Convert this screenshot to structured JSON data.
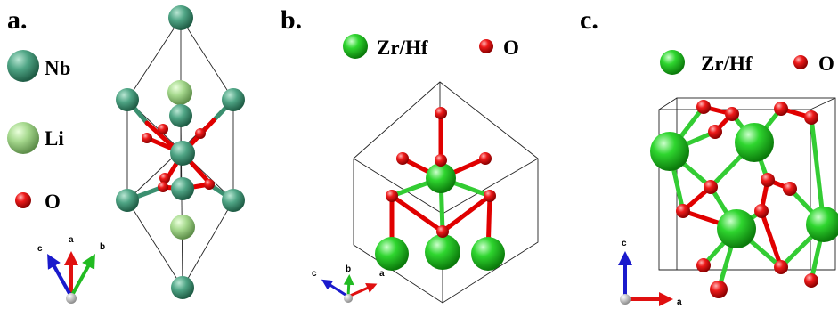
{
  "panels": [
    {
      "letter": "a.",
      "legend": [
        {
          "label": "Nb",
          "color": "#3f9a78"
        },
        {
          "label": "Li",
          "color": "#9fd68a"
        },
        {
          "label": "O",
          "color": "#e01010"
        }
      ],
      "axes": [
        "c",
        "a",
        "b"
      ]
    },
    {
      "letter": "b.",
      "legend": [
        {
          "label": "Zr/Hf",
          "color": "#22cc22"
        },
        {
          "label": "O",
          "color": "#e01010"
        }
      ],
      "axes": [
        "c",
        "b",
        "a"
      ]
    },
    {
      "letter": "c.",
      "legend": [
        {
          "label": "Zr/Hf",
          "color": "#22cc22"
        },
        {
          "label": "O",
          "color": "#e01010"
        }
      ],
      "axes": [
        "c",
        "a"
      ]
    }
  ],
  "atom_colors": {
    "nb": "#3f9a78",
    "li": "#9fd68a",
    "o": "#e01010",
    "zr_hf": "#22cc22",
    "origin": "#cfcfcf"
  },
  "axis_colors": {
    "a": "#e01010",
    "b": "#22bb22",
    "c": "#1a1acc"
  }
}
